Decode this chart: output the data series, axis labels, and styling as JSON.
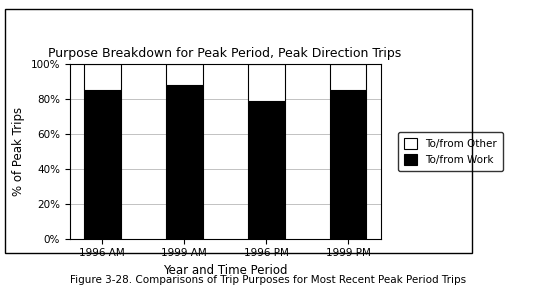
{
  "title": "Purpose Breakdown for Peak Period, Peak Direction Trips",
  "categories": [
    "1996 AM",
    "1999 AM",
    "1996 PM",
    "1999 PM"
  ],
  "work_values": [
    85,
    88,
    79,
    85
  ],
  "other_values": [
    15,
    12,
    21,
    15
  ],
  "ylabel": "% of Peak Trips",
  "xlabel": "Year and Time Period",
  "yticks": [
    0,
    20,
    40,
    60,
    80,
    100
  ],
  "ytick_labels": [
    "0%",
    "20%",
    "40%",
    "60%",
    "80%",
    "100%"
  ],
  "ylim": [
    0,
    100
  ],
  "work_color": "#000000",
  "other_color": "#ffffff",
  "bar_edge_color": "#000000",
  "legend_labels": [
    "To/from Other",
    "To/from Work"
  ],
  "caption": "Figure 3-28. Comparisons of Trip Purposes for Most Recent Peak Period Trips",
  "background_color": "#ffffff",
  "grid_color": "#aaaaaa",
  "bar_width": 0.45
}
